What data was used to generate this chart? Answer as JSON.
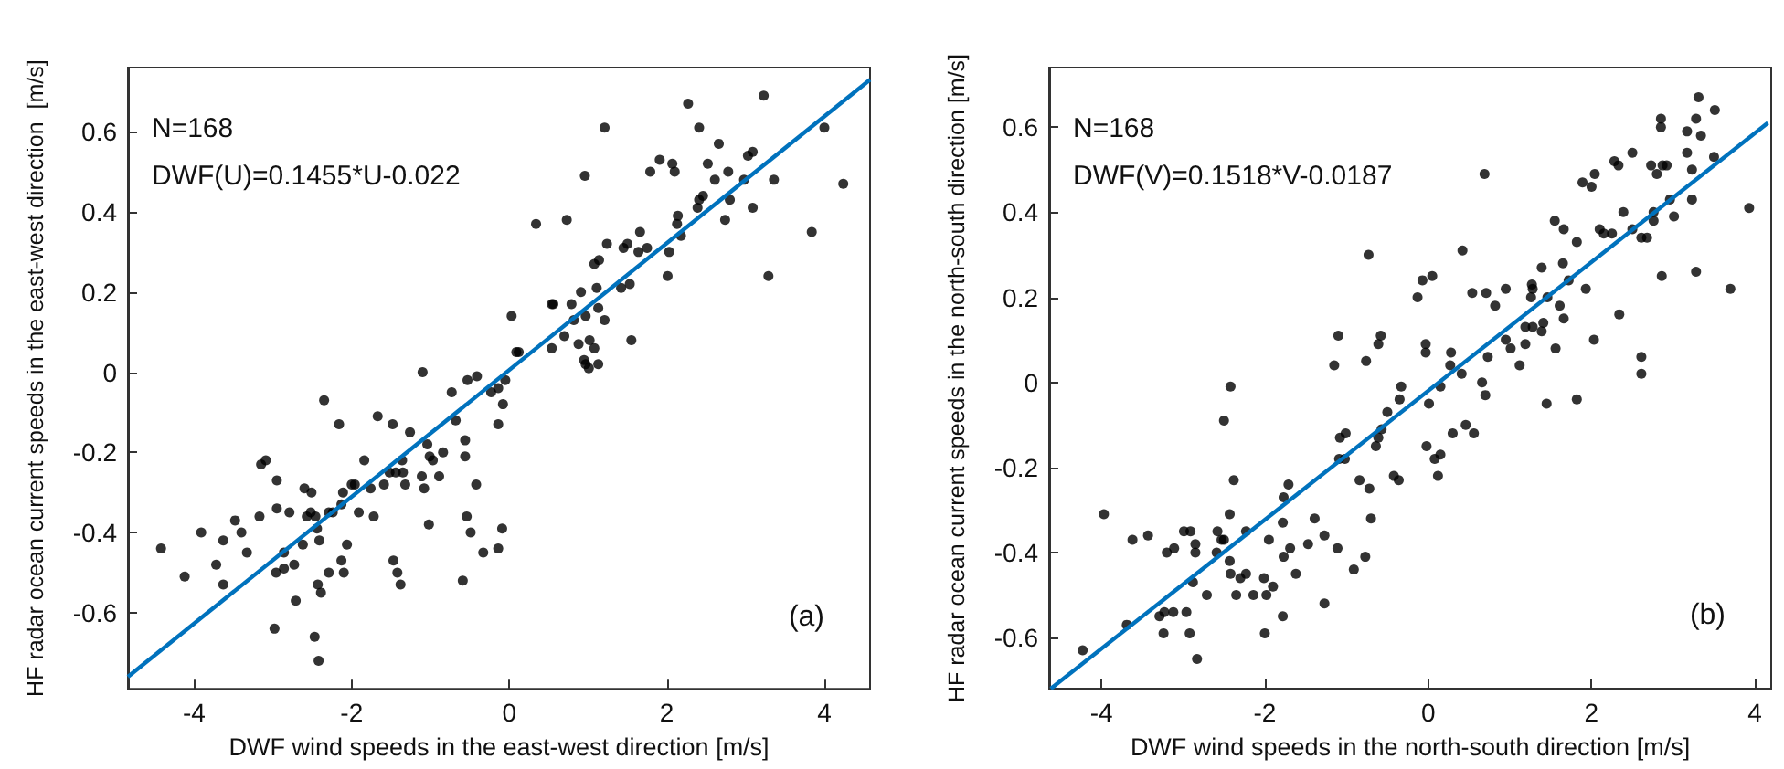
{
  "chart_data": [
    {
      "type": "scatter",
      "xlabel": "DWF wind speeds in the east-west direction [m/s]",
      "ylabel": "HF radar ocean current speeds in the east-west direction  [m/s]",
      "annotations": [
        "N=168",
        "DWF(U)=0.1455*U-0.022",
        "(a)"
      ],
      "xlim": [
        -4.84,
        4.58
      ],
      "ylim": [
        -0.79,
        0.76
      ],
      "xticks": [
        -4,
        -2,
        0,
        2,
        4
      ],
      "yticks": [
        -0.6,
        -0.4,
        -0.2,
        0,
        0.2,
        0.4,
        0.6
      ],
      "series": [
        {
          "type": "scatter",
          "color": "#000000",
          "marker": "circle",
          "x": [
            1.21,
            2.27,
            2.41,
            3.23,
            4.0,
            4.24,
            1.91,
            2.07,
            2.1,
            1.79,
            0.96,
            2.66,
            2.52,
            2.61,
            2.78,
            3.03,
            3.09,
            2.98,
            2.41,
            2.46,
            2.39,
            2.8,
            2.74,
            3.09,
            3.36,
            3.84,
            3.29,
            0.34,
            0.73,
            1.24,
            1.08,
            1.14,
            1.45,
            1.5,
            1.66,
            1.64,
            1.75,
            2.14,
            2.13,
            2.18,
            2.03,
            2.01,
            1.42,
            1.53,
            1.55,
            0.91,
            1.11,
            0.54,
            0.56,
            0.79,
            0.97,
            1.13,
            1.21,
            0.82,
            0.88,
            1.02,
            1.08,
            0.7,
            0.54,
            0.03,
            0.09,
            0.12,
            0.95,
            0.97,
            1.01,
            1.13,
            -1.1,
            -0.53,
            -0.41,
            -0.05,
            -0.14,
            -0.23,
            -0.08,
            -0.73,
            -0.68,
            -2.35,
            -2.16,
            -1.67,
            -1.48,
            -1.26,
            -0.14,
            -0.56,
            -1.04,
            -1.01,
            -0.97,
            -0.84,
            -0.56,
            -1.36,
            -1.44,
            -1.59,
            -1.84,
            -1.96,
            -1.76,
            -2.0,
            -2.11,
            -2.29,
            -2.51,
            -3.15,
            -3.09,
            -3.17,
            -2.95,
            -2.95,
            -2.79,
            -2.6,
            -2.52,
            -2.57,
            -2.44,
            -2.46,
            -2.24,
            -2.13,
            -1.91,
            -1.72,
            -1.52,
            -1.35,
            -1.32,
            -1.08,
            -1.11,
            -0.89,
            -0.54,
            -0.49,
            -0.42,
            -0.33,
            -0.09,
            -0.14,
            -1.02,
            -3.48,
            -3.4,
            -3.63,
            -3.72,
            -3.63,
            -2.86,
            -2.62,
            -2.41,
            -2.43,
            -2.39,
            -2.86,
            -2.96,
            -2.73,
            -3.33,
            -2.71,
            -2.13,
            -2.06,
            -1.47,
            -1.42,
            -1.38,
            -0.59,
            -2.98,
            -2.47,
            -2.42,
            -2.29,
            -3.91,
            -4.42,
            -4.12,
            -2.1
          ],
          "values": [
            0.61,
            0.67,
            0.61,
            0.69,
            0.61,
            0.47,
            0.53,
            0.52,
            0.5,
            0.5,
            0.49,
            0.57,
            0.52,
            0.48,
            0.5,
            0.54,
            0.55,
            0.48,
            0.43,
            0.44,
            0.41,
            0.43,
            0.38,
            0.41,
            0.48,
            0.35,
            0.24,
            0.37,
            0.38,
            0.32,
            0.27,
            0.28,
            0.31,
            0.32,
            0.35,
            0.3,
            0.31,
            0.39,
            0.37,
            0.34,
            0.3,
            0.24,
            0.21,
            0.22,
            0.08,
            0.2,
            0.21,
            0.17,
            0.17,
            0.17,
            0.14,
            0.16,
            0.13,
            0.13,
            0.07,
            0.08,
            0.06,
            0.09,
            0.06,
            0.14,
            0.05,
            0.05,
            0.03,
            0.02,
            0.01,
            0.02,
            0.0,
            -0.02,
            -0.01,
            -0.02,
            -0.04,
            -0.05,
            -0.08,
            -0.05,
            -0.12,
            -0.07,
            -0.13,
            -0.11,
            -0.13,
            -0.15,
            -0.13,
            -0.17,
            -0.18,
            -0.21,
            -0.22,
            -0.2,
            -0.21,
            -0.22,
            -0.25,
            -0.28,
            -0.22,
            -0.28,
            -0.29,
            -0.28,
            -0.3,
            -0.35,
            -0.3,
            -0.23,
            -0.22,
            -0.36,
            -0.27,
            -0.34,
            -0.35,
            -0.29,
            -0.35,
            -0.36,
            -0.39,
            -0.36,
            -0.35,
            -0.33,
            -0.35,
            -0.36,
            -0.25,
            -0.25,
            -0.28,
            -0.29,
            -0.26,
            -0.26,
            -0.36,
            -0.4,
            -0.28,
            -0.45,
            -0.39,
            -0.44,
            -0.38,
            -0.37,
            -0.4,
            -0.53,
            -0.48,
            -0.42,
            -0.45,
            -0.43,
            -0.42,
            -0.53,
            -0.55,
            -0.49,
            -0.5,
            -0.48,
            -0.45,
            -0.57,
            -0.47,
            -0.43,
            -0.47,
            -0.5,
            -0.53,
            -0.52,
            -0.64,
            -0.66,
            -0.72,
            -0.5,
            -0.4,
            -0.44,
            -0.51,
            -0.5
          ]
        },
        {
          "type": "line",
          "color": "#0072bd",
          "marker": "none",
          "line_style": "solid",
          "x": [
            -4.84,
            4.58
          ],
          "values": [
            -0.76,
            0.73
          ]
        }
      ]
    },
    {
      "type": "scatter",
      "xlabel": "DWF wind speeds in the north-south direction [m/s]",
      "ylabel": "HF radar ocean current speeds in the north-south direction [m/s]",
      "annotations": [
        "N=168",
        "DWF(V)=0.1518*V-0.0187",
        "(b)"
      ],
      "xlim": [
        -4.64,
        4.2
      ],
      "ylim": [
        -0.72,
        0.74
      ],
      "xticks": [
        -4,
        -2,
        0,
        2,
        4
      ],
      "yticks": [
        -0.6,
        -0.4,
        -0.2,
        0,
        0.2,
        0.4,
        0.6
      ],
      "series": [
        {
          "type": "scatter",
          "color": "#000000",
          "marker": "circle",
          "x": [
            3.31,
            3.51,
            3.28,
            2.85,
            2.85,
            3.17,
            3.34,
            3.17,
            3.5,
            2.5,
            2.28,
            2.33,
            2.73,
            2.87,
            2.92,
            2.8,
            3.23,
            2.04,
            1.89,
            2.0,
            0.69,
            2.96,
            3.23,
            3.01,
            2.76,
            2.76,
            2.39,
            1.55,
            1.66,
            2.1,
            2.15,
            2.25,
            2.5,
            2.61,
            2.68,
            1.82,
            3.93,
            2.86,
            3.28,
            3.7,
            1.93,
            1.72,
            1.39,
            1.65,
            1.27,
            1.28,
            1.26,
            1.46,
            0.95,
            0.82,
            0.71,
            0.54,
            0.42,
            -0.73,
            -0.13,
            -0.07,
            0.05,
            1.61,
            1.41,
            1.66,
            1.19,
            1.28,
            1.39,
            2.03,
            2.34,
            0.95,
            1.01,
            1.19,
            1.12,
            1.56,
            -0.03,
            -0.03,
            0.28,
            0.27,
            0.41,
            0.73,
            2.61,
            2.61,
            -1.1,
            -0.58,
            -0.61,
            -1.15,
            -0.76,
            0.66,
            0.7,
            -0.33,
            -0.35,
            0.15,
            1.45,
            1.82,
            -2.42,
            0.01,
            -0.5,
            -0.57,
            -0.61,
            -0.64,
            -1.01,
            -1.08,
            -1.09,
            -1.02,
            -0.02,
            0.08,
            0.15,
            0.12,
            0.3,
            0.46,
            0.56,
            -0.42,
            -0.36,
            -0.84,
            -0.72,
            -0.7,
            -0.77,
            -0.91,
            -1.71,
            -1.77,
            -1.78,
            -1.39,
            -1.27,
            -1.11,
            -1.47,
            -1.69,
            -1.77,
            -1.62,
            -1.9,
            -1.98,
            -1.95,
            -2.01,
            -1.78,
            -1.27,
            -2.0,
            -2.23,
            -2.38,
            -2.43,
            -2.58,
            -2.53,
            -2.5,
            -2.59,
            -2.43,
            -2.42,
            -2.23,
            -2.3,
            -2.35,
            -2.14,
            -2.71,
            -2.5,
            -2.99,
            -2.91,
            -2.85,
            -2.85,
            -3.11,
            -3.2,
            -2.88,
            -3.43,
            -3.62,
            -3.97,
            -3.69,
            -3.29,
            -3.12,
            -3.23,
            -2.96,
            -3.24,
            -2.92,
            -2.83,
            -4.23
          ],
          "values": [
            0.67,
            0.64,
            0.62,
            0.62,
            0.6,
            0.59,
            0.58,
            0.54,
            0.53,
            0.54,
            0.52,
            0.51,
            0.51,
            0.51,
            0.51,
            0.49,
            0.5,
            0.49,
            0.47,
            0.46,
            0.49,
            0.43,
            0.43,
            0.39,
            0.4,
            0.38,
            0.4,
            0.38,
            0.36,
            0.36,
            0.35,
            0.35,
            0.36,
            0.34,
            0.34,
            0.33,
            0.41,
            0.25,
            0.26,
            0.22,
            0.22,
            0.24,
            0.27,
            0.28,
            0.23,
            0.22,
            0.2,
            0.2,
            0.22,
            0.18,
            0.21,
            0.21,
            0.31,
            0.3,
            0.2,
            0.24,
            0.25,
            0.18,
            0.14,
            0.15,
            0.13,
            0.13,
            0.12,
            0.1,
            0.16,
            0.1,
            0.08,
            0.09,
            0.04,
            0.08,
            0.09,
            0.07,
            0.07,
            0.04,
            0.02,
            0.06,
            0.06,
            0.02,
            0.11,
            0.11,
            0.09,
            0.04,
            0.05,
            0.0,
            -0.03,
            -0.01,
            -0.04,
            -0.01,
            -0.05,
            -0.04,
            -0.01,
            -0.05,
            -0.07,
            -0.11,
            -0.13,
            -0.15,
            -0.12,
            -0.13,
            -0.18,
            -0.18,
            -0.15,
            -0.18,
            -0.17,
            -0.22,
            -0.12,
            -0.1,
            -0.12,
            -0.22,
            -0.23,
            -0.23,
            -0.25,
            -0.32,
            -0.41,
            -0.44,
            -0.24,
            -0.27,
            -0.33,
            -0.32,
            -0.36,
            -0.39,
            -0.38,
            -0.39,
            -0.41,
            -0.45,
            -0.48,
            -0.5,
            -0.37,
            -0.46,
            -0.55,
            -0.52,
            -0.59,
            -0.35,
            -0.23,
            -0.31,
            -0.35,
            -0.37,
            -0.37,
            -0.4,
            -0.42,
            -0.45,
            -0.45,
            -0.46,
            -0.5,
            -0.5,
            -0.5,
            -0.09,
            -0.35,
            -0.35,
            -0.38,
            -0.4,
            -0.39,
            -0.4,
            -0.47,
            -0.36,
            -0.37,
            -0.31,
            -0.57,
            -0.55,
            -0.54,
            -0.54,
            -0.54,
            -0.59,
            -0.59,
            -0.65,
            -0.63
          ]
        },
        {
          "type": "line",
          "color": "#0072bd",
          "marker": "none",
          "line_style": "solid",
          "x": [
            -4.62,
            4.16
          ],
          "values": [
            -0.72,
            0.61
          ]
        }
      ]
    }
  ]
}
